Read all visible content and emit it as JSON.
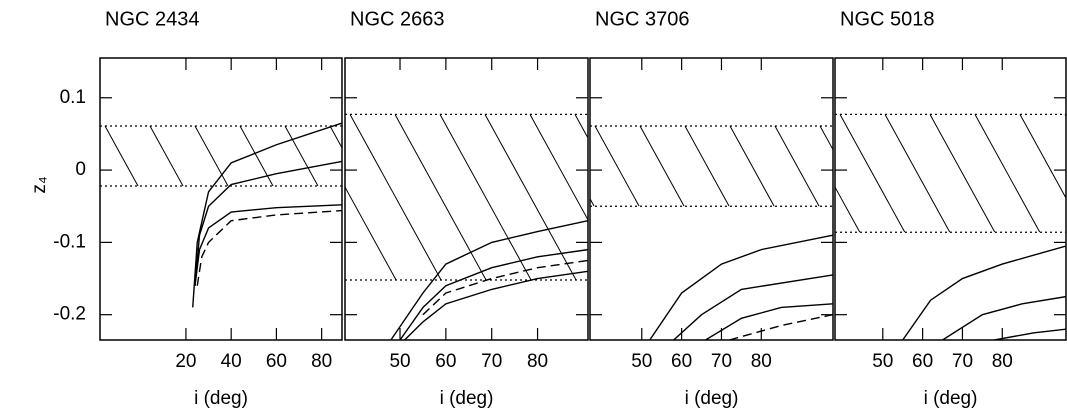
{
  "chart_data": [
    {
      "type": "line",
      "title": "NGC 2434",
      "xlabel": "i (deg)",
      "ylabel": "z₄",
      "show_ytick_labels": true,
      "xlim": [
        -18,
        89
      ],
      "xticks": [
        20,
        40,
        60,
        80
      ],
      "ylim": [
        -0.235,
        0.155
      ],
      "yticks": [
        -0.2,
        -0.1,
        0,
        0.1
      ],
      "band": [
        -0.022,
        0.061
      ],
      "series": [
        {
          "color": "#000000",
          "dashed": false,
          "x": [
            23,
            25,
            30,
            40,
            60,
            89
          ],
          "values": [
            -0.19,
            -0.1,
            -0.03,
            0.01,
            0.035,
            0.065
          ]
        },
        {
          "color": "#000000",
          "dashed": false,
          "x": [
            24,
            26,
            30,
            40,
            60,
            89
          ],
          "values": [
            -0.16,
            -0.09,
            -0.05,
            -0.02,
            -0.005,
            0.012
          ]
        },
        {
          "color": "#000000",
          "dashed": false,
          "x": [
            24,
            26,
            30,
            40,
            60,
            89
          ],
          "values": [
            -0.16,
            -0.11,
            -0.08,
            -0.058,
            -0.052,
            -0.048
          ]
        },
        {
          "color": "#000000",
          "dashed": true,
          "x": [
            25,
            27,
            30,
            40,
            60,
            89
          ],
          "values": [
            -0.16,
            -0.12,
            -0.1,
            -0.07,
            -0.062,
            -0.056
          ]
        }
      ]
    },
    {
      "type": "line",
      "title": "NGC 2663",
      "xlabel": "i (deg)",
      "show_ytick_labels": false,
      "xlim": [
        38,
        91
      ],
      "xticks": [
        50,
        60,
        70,
        80
      ],
      "ylim": [
        -0.235,
        0.155
      ],
      "yticks": [
        -0.2,
        -0.1,
        0,
        0.1
      ],
      "band": [
        -0.152,
        0.077
      ],
      "series": [
        {
          "color": "#000000",
          "dashed": false,
          "x": [
            48,
            55,
            60,
            70,
            80,
            91
          ],
          "values": [
            -0.235,
            -0.17,
            -0.13,
            -0.1,
            -0.085,
            -0.07
          ]
        },
        {
          "color": "#000000",
          "dashed": false,
          "x": [
            50,
            55,
            60,
            70,
            80,
            91
          ],
          "values": [
            -0.235,
            -0.19,
            -0.16,
            -0.135,
            -0.12,
            -0.11
          ]
        },
        {
          "color": "#000000",
          "dashed": true,
          "x": [
            55,
            60,
            70,
            80,
            91
          ],
          "values": [
            -0.2,
            -0.17,
            -0.15,
            -0.135,
            -0.125
          ]
        },
        {
          "color": "#000000",
          "dashed": false,
          "x": [
            51,
            55,
            60,
            70,
            80,
            91
          ],
          "values": [
            -0.235,
            -0.21,
            -0.185,
            -0.165,
            -0.15,
            -0.14
          ]
        }
      ]
    },
    {
      "type": "line",
      "title": "NGC 3706",
      "xlabel": "i (deg)",
      "show_ytick_labels": false,
      "xlim": [
        37,
        98
      ],
      "xticks": [
        50,
        60,
        70,
        80
      ],
      "ylim": [
        -0.235,
        0.155
      ],
      "yticks": [
        -0.2,
        -0.1,
        0,
        0.1
      ],
      "band": [
        -0.05,
        0.061
      ],
      "series": [
        {
          "color": "#000000",
          "dashed": false,
          "x": [
            52,
            60,
            70,
            80,
            98
          ],
          "values": [
            -0.235,
            -0.17,
            -0.13,
            -0.11,
            -0.09
          ]
        },
        {
          "color": "#000000",
          "dashed": false,
          "x": [
            58,
            65,
            75,
            98
          ],
          "values": [
            -0.235,
            -0.2,
            -0.165,
            -0.145
          ]
        },
        {
          "color": "#000000",
          "dashed": false,
          "x": [
            66,
            75,
            85,
            98
          ],
          "values": [
            -0.235,
            -0.205,
            -0.19,
            -0.185
          ]
        },
        {
          "color": "#000000",
          "dashed": true,
          "x": [
            72,
            85,
            98
          ],
          "values": [
            -0.235,
            -0.215,
            -0.2
          ]
        }
      ]
    },
    {
      "type": "line",
      "title": "NGC 5018",
      "xlabel": "i (deg)",
      "show_ytick_labels": false,
      "xlim": [
        38,
        96
      ],
      "xticks": [
        50,
        60,
        70,
        80
      ],
      "ylim": [
        -0.235,
        0.155
      ],
      "yticks": [
        -0.2,
        -0.1,
        0,
        0.1
      ],
      "band": [
        -0.086,
        0.077
      ],
      "series": [
        {
          "color": "#000000",
          "dashed": false,
          "x": [
            55,
            62,
            70,
            80,
            96
          ],
          "values": [
            -0.235,
            -0.18,
            -0.15,
            -0.13,
            -0.105
          ]
        },
        {
          "color": "#000000",
          "dashed": false,
          "x": [
            65,
            75,
            85,
            96
          ],
          "values": [
            -0.235,
            -0.2,
            -0.185,
            -0.175
          ]
        },
        {
          "color": "#000000",
          "dashed": false,
          "x": [
            78,
            88,
            96
          ],
          "values": [
            -0.235,
            -0.225,
            -0.22
          ]
        }
      ]
    }
  ]
}
